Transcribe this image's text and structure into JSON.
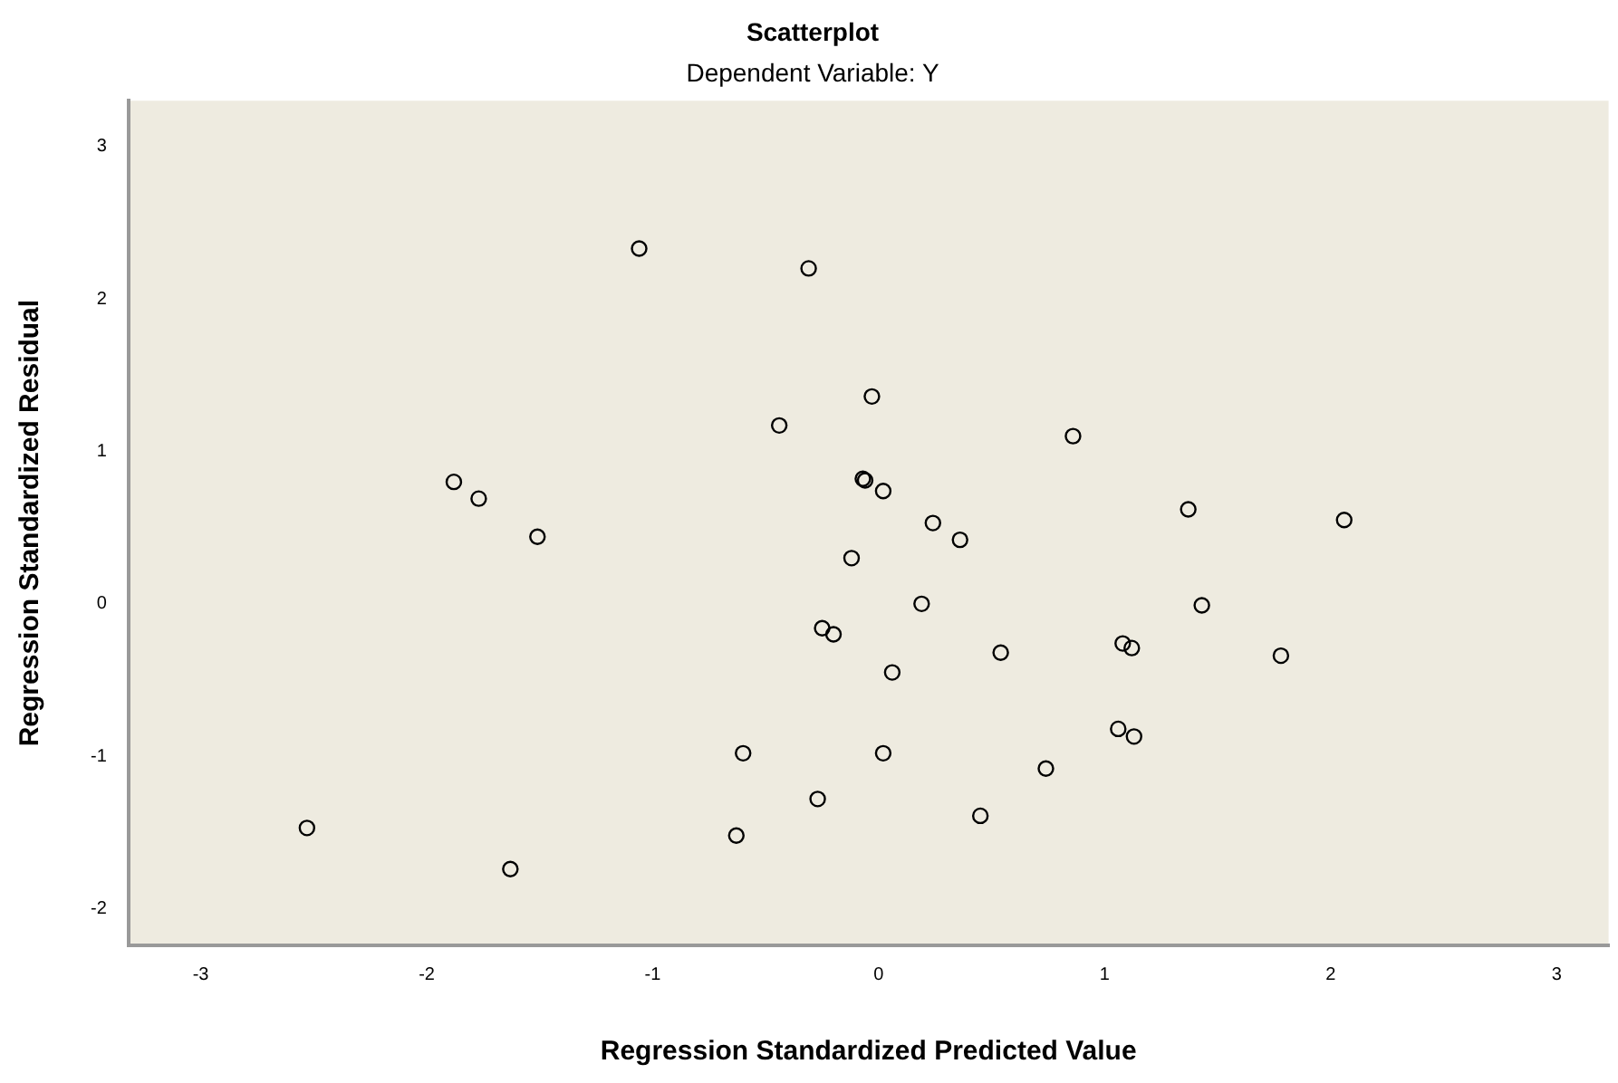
{
  "chart_data": {
    "type": "scatter",
    "title": "Scatterplot",
    "subtitle": "Dependent Variable: Y",
    "xlabel": "Regression Standardized Predicted Value",
    "ylabel": "Regression Standardized Residual",
    "x": [
      -1.06,
      -0.31,
      -0.03,
      -0.44,
      -1.88,
      -1.77,
      -1.51,
      -0.07,
      -0.06,
      0.02,
      -0.12,
      -0.25,
      -0.2,
      -0.6,
      -0.27,
      -0.63,
      -2.53,
      -1.63,
      0.86,
      1.37,
      2.06,
      0.24,
      0.36,
      0.19,
      1.43,
      0.54,
      1.08,
      1.12,
      1.78,
      0.06,
      1.06,
      1.13,
      0.02,
      0.74,
      0.45
    ],
    "series": [
      {
        "color": "#000000",
        "values": [
          2.33,
          2.2,
          1.36,
          1.17,
          0.8,
          0.69,
          0.44,
          0.82,
          0.81,
          0.74,
          0.3,
          -0.16,
          -0.2,
          -0.98,
          -1.28,
          -1.52,
          -1.47,
          -1.74,
          1.1,
          0.62,
          0.55,
          0.53,
          0.42,
          0.0,
          -0.01,
          -0.32,
          -0.26,
          -0.29,
          -0.34,
          -0.45,
          -0.82,
          -0.87,
          -0.98,
          -1.08,
          -1.39
        ]
      }
    ],
    "xlim": [
      -3.32,
      3.23
    ],
    "xticks": [
      -3,
      -2,
      -1,
      0,
      1,
      2,
      3
    ],
    "ylim": [
      -2.24,
      3.3
    ],
    "yticks": [
      -2,
      -1,
      0,
      1,
      2,
      3
    ],
    "grid": false,
    "legend": false,
    "marker": "circle"
  }
}
